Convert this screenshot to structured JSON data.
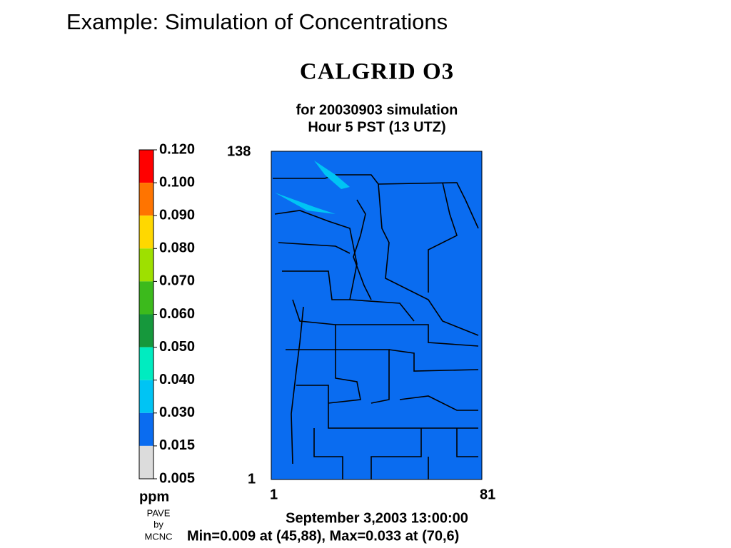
{
  "title": "Example: Simulation of Concentrations",
  "plot": {
    "title": "CALGRID O3",
    "subtitle": [
      "for 20030903 simulation",
      "Hour 5 PST (13 UTZ)"
    ],
    "legend": {
      "unit": "ppm",
      "levels": [
        "0.120",
        "0.100",
        "0.090",
        "0.080",
        "0.070",
        "0.060",
        "0.050",
        "0.040",
        "0.030",
        "0.015",
        "0.005"
      ],
      "colors": [
        "#ff0000",
        "#ff7400",
        "#ffd800",
        "#9ee000",
        "#3cba1c",
        "#16983c",
        "#00ecc0",
        "#00c4f4",
        "#0a6cf0",
        "#dcdcdc"
      ]
    },
    "map_color": "#0a6cf0",
    "axis": {
      "y_top": "138",
      "y_bottom": "1",
      "x_left": "1",
      "x_right": "81"
    },
    "date": "September 3,2003 13:00:00",
    "stats": "Min=0.009 at (45,88), Max=0.033 at (70,6)",
    "credit": [
      "PAVE",
      "by",
      "MCNC"
    ]
  }
}
